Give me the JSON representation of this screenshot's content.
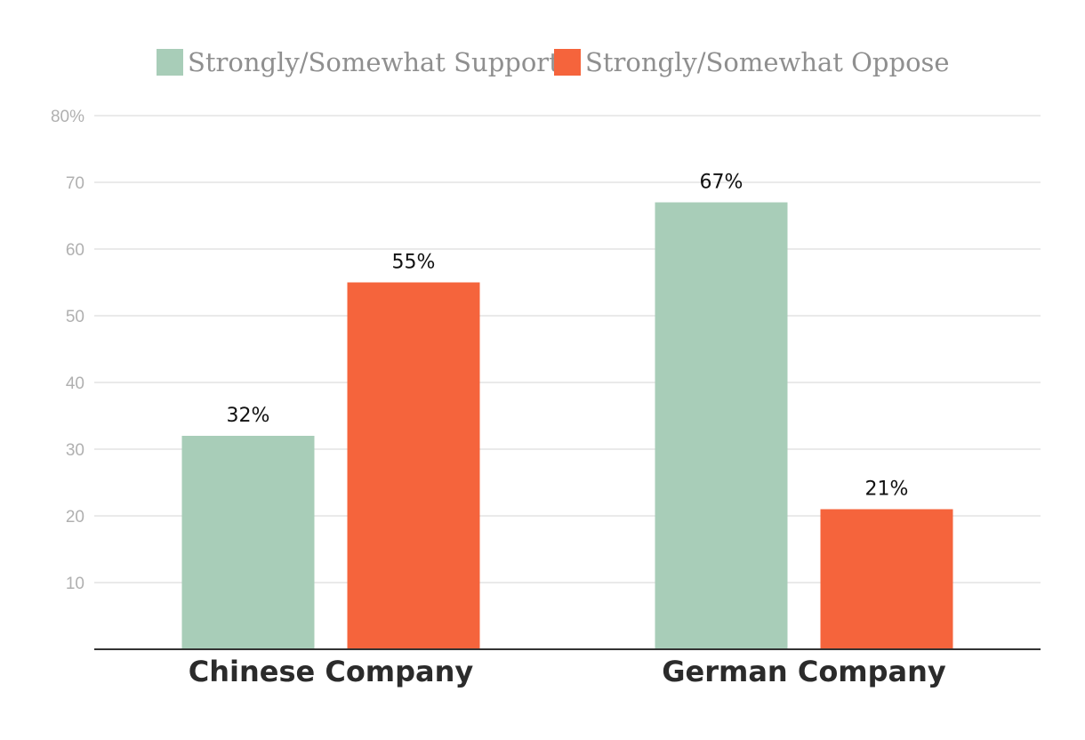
{
  "chart_data": {
    "type": "bar",
    "categories": [
      "Chinese Company",
      "German Company"
    ],
    "series": [
      {
        "name": "Strongly/Somewhat Support",
        "color": "#a8cdb8",
        "values": [
          32,
          67
        ],
        "labels": [
          "32%",
          "67%"
        ]
      },
      {
        "name": "Strongly/Somewhat Oppose",
        "color": "#f5643c",
        "values": [
          55,
          21
        ],
        "labels": [
          "55%",
          "21%"
        ]
      }
    ],
    "ylim": [
      0,
      80
    ],
    "yticks": [
      10,
      20,
      30,
      40,
      50,
      60,
      70,
      80
    ],
    "ytick_labels": [
      "10",
      "20",
      "30",
      "40",
      "50",
      "60",
      "70",
      "80%"
    ],
    "grid": true,
    "legend_position": "top-center",
    "title": "",
    "xlabel": "",
    "ylabel": ""
  }
}
